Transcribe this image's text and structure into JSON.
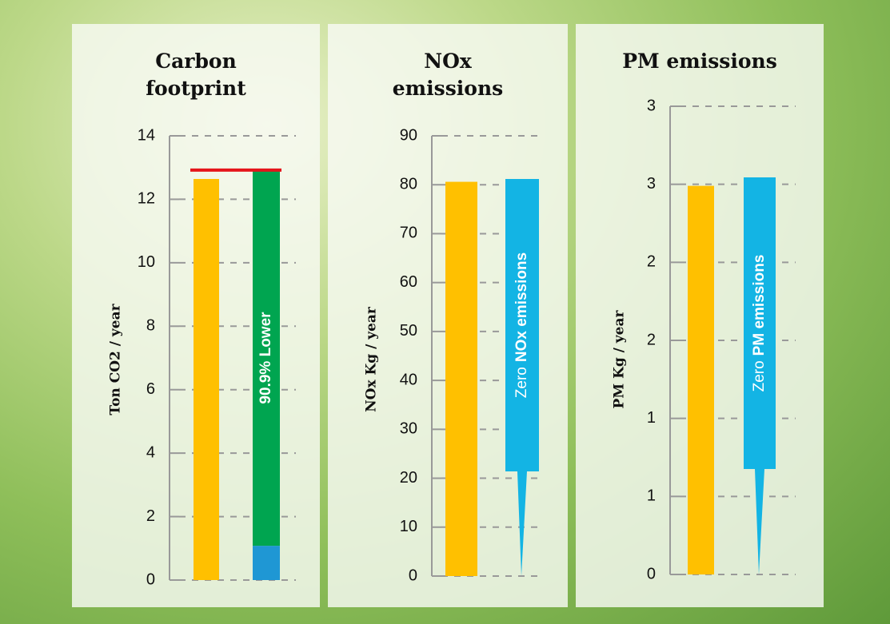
{
  "chart_data": [
    {
      "type": "bar",
      "title": "Carbon footprint",
      "y_label": "Ton CO2 / year",
      "ylim": [
        0,
        14
      ],
      "yticks": [
        0,
        2,
        4,
        6,
        8,
        10,
        12,
        14
      ],
      "grid": true,
      "stacked": true,
      "series": [
        {
          "color": "#ffc000",
          "values": [
            12.64,
            null
          ]
        },
        {
          "color": "#1f97d4",
          "values": [
            null,
            1.08
          ]
        },
        {
          "color": "#00a550",
          "values": [
            null,
            11.84
          ]
        }
      ],
      "reference_line": {
        "value": 12.92,
        "color": "#e5151b"
      },
      "annotation": "90.9% Lower"
    },
    {
      "type": "bar",
      "title": "NOx emissions",
      "y_label": "NOx Kg / year",
      "ylim": [
        0,
        90
      ],
      "yticks": [
        0,
        10,
        20,
        30,
        40,
        50,
        60,
        70,
        80,
        90
      ],
      "grid": true,
      "series": [
        {
          "color": "#ffc000",
          "values": [
            80.6,
            null
          ]
        },
        {
          "color": "#13b4e4",
          "values": [
            null,
            0
          ]
        }
      ],
      "callout": {
        "text": "Zero",
        "bold": "NOx emissions"
      }
    },
    {
      "type": "bar",
      "title": "PM emissions",
      "y_label": "PM Kg / year",
      "ylim": [
        0,
        3
      ],
      "yticks": [
        0,
        {
          "value": 0.5,
          "label": "1"
        },
        1,
        {
          "value": 1.5,
          "label": "2"
        },
        2,
        {
          "value": 2.5,
          "label": "3"
        },
        3
      ],
      "grid": true,
      "series": [
        {
          "color": "#ffc000",
          "values": [
            2.49,
            null
          ]
        },
        {
          "color": "#13b4e4",
          "values": [
            null,
            0
          ]
        }
      ],
      "callout": {
        "text": "Zero",
        "bold": "PM emissions"
      }
    }
  ]
}
